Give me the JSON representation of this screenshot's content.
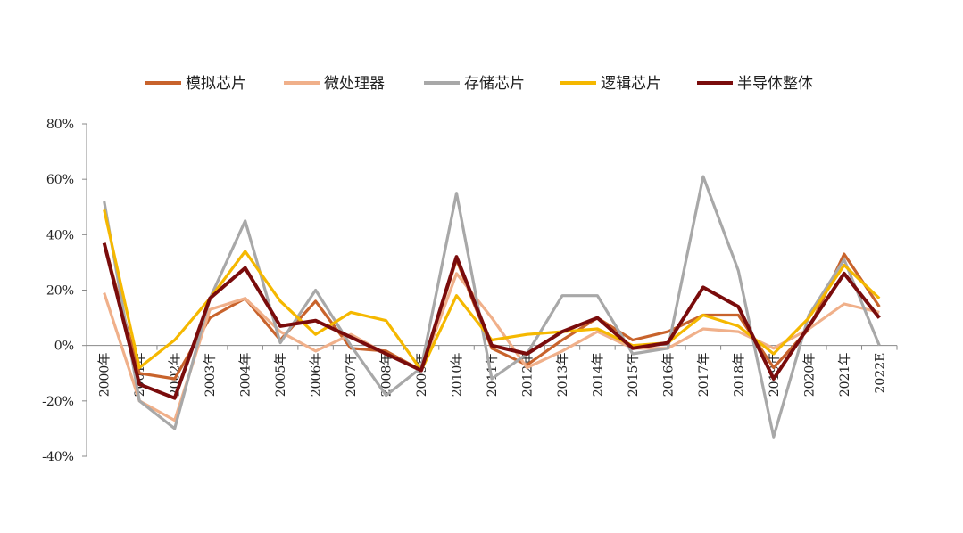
{
  "chart_data": {
    "type": "line",
    "categories": [
      "2000年",
      "2001年",
      "2002年",
      "2003年",
      "2004年",
      "2005年",
      "2006年",
      "2007年",
      "2008年",
      "2009年",
      "2010年",
      "2011年",
      "2012年",
      "2013年",
      "2014年",
      "2015年",
      "2016年",
      "2017年",
      "2018年",
      "2019年",
      "2020年",
      "2021年",
      "2022E"
    ],
    "series": [
      {
        "name": "模拟芯片",
        "color": "#c8632c",
        "values": [
          37,
          -10,
          -12,
          10,
          17,
          2,
          16,
          -1,
          -2,
          -9,
          31,
          -1,
          -7,
          2,
          10,
          2,
          5,
          11,
          11,
          -8,
          6,
          33,
          14
        ]
      },
      {
        "name": "微处理器",
        "color": "#f0b08a",
        "values": [
          19,
          -20,
          -27,
          13,
          17,
          5,
          -2,
          4,
          -3,
          -9,
          26,
          10,
          -8,
          -2,
          5,
          -1,
          -1,
          6,
          5,
          -1,
          6,
          15,
          12
        ]
      },
      {
        "name": "存储芯片",
        "color": "#a8a8a8",
        "values": [
          52,
          -20,
          -30,
          17,
          45,
          1,
          20,
          0,
          -18,
          -8,
          55,
          -12,
          -3,
          18,
          18,
          -3,
          -1,
          61,
          27,
          -33,
          11,
          31,
          0
        ]
      },
      {
        "name": "逻辑芯片",
        "color": "#f5b800",
        "values": [
          49,
          -8,
          2,
          17,
          34,
          16,
          4,
          12,
          9,
          -9,
          18,
          2,
          4,
          5,
          6,
          0,
          1,
          11,
          7,
          -3,
          10,
          29,
          17
        ]
      },
      {
        "name": "半导体整体",
        "color": "#7a0c0c",
        "values": [
          37,
          -14,
          -19,
          17,
          28,
          7,
          9,
          3,
          -3,
          -9,
          32,
          0,
          -3,
          5,
          10,
          -1,
          1,
          21,
          14,
          -12,
          7,
          26,
          10
        ]
      }
    ],
    "ylim": [
      -40,
      80
    ],
    "yticks": [
      {
        "value": -40,
        "label": "-40%"
      },
      {
        "value": -20,
        "label": "-20%"
      },
      {
        "value": 0,
        "label": "0%"
      },
      {
        "value": 20,
        "label": "20%"
      },
      {
        "value": 40,
        "label": "40%"
      },
      {
        "value": 60,
        "label": "60%"
      },
      {
        "value": 80,
        "label": "80%"
      }
    ]
  }
}
